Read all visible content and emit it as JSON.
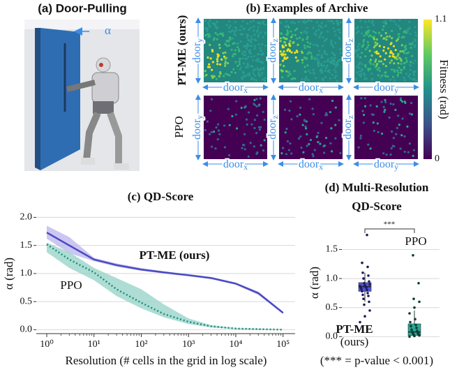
{
  "panel_a": {
    "title": "(a) Door-Pulling",
    "angle_label": "α"
  },
  "panel_b": {
    "title": "(b) Examples of Archive",
    "row_labels": [
      "PT-ME (ours)",
      "PPO"
    ],
    "axes": [
      {
        "x": [
          "door",
          "x"
        ],
        "y": [
          "door",
          "y"
        ]
      },
      {
        "x": [
          "door",
          "x"
        ],
        "y": [
          "door",
          "z"
        ]
      },
      {
        "x": [
          "door",
          "y"
        ],
        "y": [
          "door",
          "z"
        ]
      }
    ],
    "colorbar": {
      "label": "Fitness (rad)",
      "lim": [
        0,
        1.1
      ],
      "ticks": [
        1.1,
        0
      ]
    }
  },
  "chart_data": [
    {
      "type": "line",
      "title": "(c) QD-Score",
      "x_label": "Resolution (# cells in the grid in log scale)",
      "y_label": "α (rad)",
      "log_x": true,
      "grid": true,
      "x": [
        1,
        3,
        10,
        30,
        100,
        300,
        1000,
        3000,
        10000,
        30000,
        100000
      ],
      "xlim": [
        0.6,
        180000
      ],
      "xticks": [
        {
          "value": 1,
          "label": "10⁰"
        },
        {
          "value": 10,
          "label": "10¹"
        },
        {
          "value": 100,
          "label": "10²"
        },
        {
          "value": 1000,
          "label": "10³"
        },
        {
          "value": 10000,
          "label": "10⁴"
        },
        {
          "value": 100000,
          "label": "10⁵"
        }
      ],
      "ylim": [
        -0.07,
        2.08
      ],
      "yticks": [
        {
          "value": 0,
          "label": "0.0"
        },
        {
          "value": 0.5,
          "label": "0.5"
        },
        {
          "value": 1,
          "label": "1.0"
        },
        {
          "value": 1.5,
          "label": "1.5"
        },
        {
          "value": 2,
          "label": "2.0"
        }
      ],
      "series": [
        {
          "name": "PT-ME (ours)",
          "color": "#4a4ac4",
          "band_color": "#b9b4ec",
          "dash": false,
          "values": [
            1.73,
            1.5,
            1.25,
            1.15,
            1.07,
            1.02,
            0.97,
            0.92,
            0.82,
            0.65,
            0.3
          ],
          "lower": [
            1.62,
            1.36,
            1.22,
            1.12,
            1.05,
            1.0,
            0.95,
            0.9,
            0.8,
            0.62,
            0.28
          ],
          "upper": [
            1.85,
            1.65,
            1.28,
            1.18,
            1.1,
            1.04,
            0.99,
            0.94,
            0.84,
            0.68,
            0.32
          ]
        },
        {
          "name": "PPO",
          "color": "#1f8a7a",
          "band_color": "#92d2c6",
          "dash": true,
          "values": [
            1.52,
            1.25,
            1.02,
            0.72,
            0.48,
            0.28,
            0.14,
            0.06,
            0.02,
            0.01,
            0.0
          ],
          "lower": [
            1.38,
            1.1,
            0.88,
            0.6,
            0.38,
            0.22,
            0.1,
            0.04,
            0.01,
            0.0,
            0.0
          ],
          "upper": [
            1.55,
            1.38,
            1.1,
            0.92,
            0.72,
            0.45,
            0.2,
            0.08,
            0.03,
            0.02,
            0.01
          ]
        }
      ]
    },
    {
      "type": "box",
      "title_lines": [
        "(d) Multi-Resolution",
        "QD-Score"
      ],
      "y_label": "α (rad)",
      "grid": true,
      "ylim": [
        -0.02,
        1.95
      ],
      "yticks": [
        {
          "value": 0,
          "label": "0.0"
        },
        {
          "value": 0.5,
          "label": "0.5"
        },
        {
          "value": 1,
          "label": "1.0"
        },
        {
          "value": 1.5,
          "label": "1.5"
        }
      ],
      "significance": "***",
      "note": "(*** = p-value < 0.001)",
      "groups": [
        {
          "name_lines": [
            "PT-ME",
            "(ours)"
          ],
          "color": "#5252d6",
          "point_color": "#1c1c5c",
          "q1": 0.78,
          "median": 0.86,
          "q3": 0.93,
          "whisker_low": 0.6,
          "whisker_high": 1.1,
          "points": [
            0.25,
            0.35,
            0.45,
            0.55,
            0.6,
            0.65,
            0.7,
            0.72,
            0.75,
            0.78,
            0.8,
            0.82,
            0.84,
            0.85,
            0.86,
            0.87,
            0.88,
            0.9,
            0.92,
            0.95,
            1.0,
            1.05,
            1.1,
            1.2,
            1.27,
            1.75
          ]
        },
        {
          "name_lines": [
            "PPO"
          ],
          "color": "#2aa895",
          "point_color": "#0e3d36",
          "q1": 0.02,
          "median": 0.08,
          "q3": 0.22,
          "whisker_low": 0.0,
          "whisker_high": 0.45,
          "points": [
            0.0,
            0.01,
            0.02,
            0.03,
            0.04,
            0.05,
            0.06,
            0.08,
            0.1,
            0.12,
            0.15,
            0.18,
            0.2,
            0.25,
            0.3,
            0.4,
            0.5,
            0.6,
            0.65,
            0.92,
            1.4
          ]
        }
      ]
    }
  ]
}
